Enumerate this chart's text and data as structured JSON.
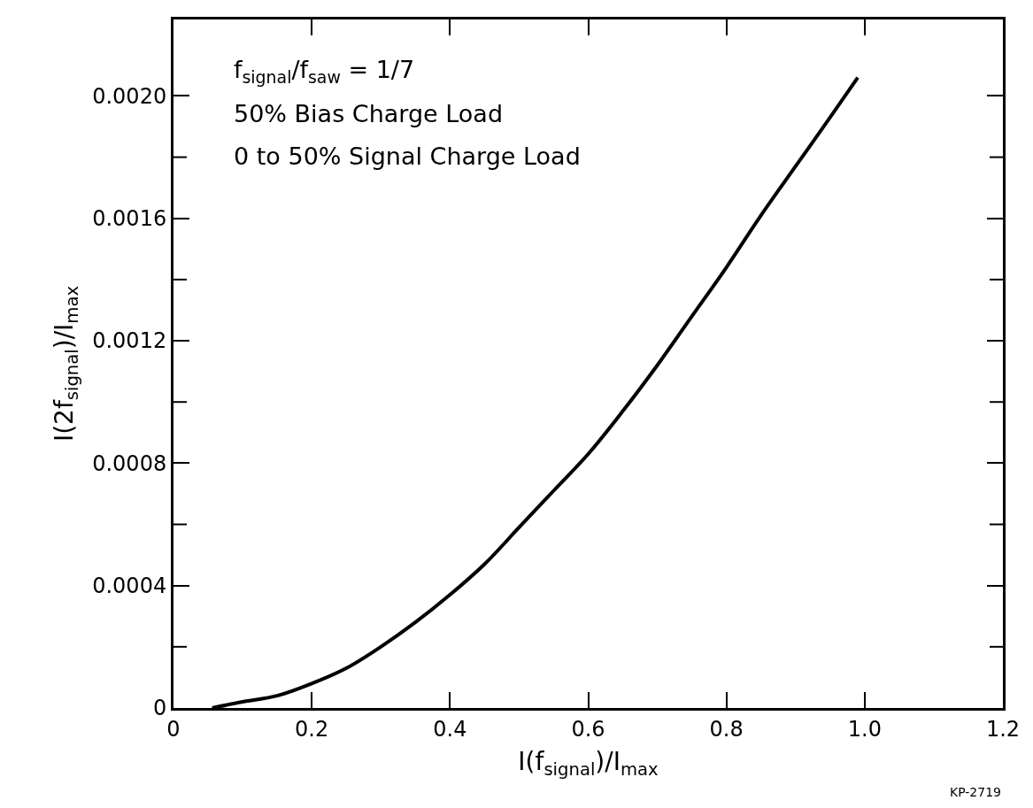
{
  "chart_data": {
    "type": "line",
    "xlabel": "I(f$_{signal}$)/I$_{max}$",
    "ylabel": "I(2f$_{signal}$)/I$_{max}$",
    "annotations": [
      "f$_{signal}$/f$_{saw}$ = 1/7",
      "50% Bias Charge Load",
      "0 to 50% Signal Charge Load",
      "KP-2719"
    ],
    "series": [
      {
        "color": "#000000",
        "x": [
          0.056,
          0.1,
          0.15,
          0.2,
          0.25,
          0.3,
          0.35,
          0.4,
          0.45,
          0.5,
          0.55,
          0.6,
          0.65,
          0.7,
          0.75,
          0.8,
          0.85,
          0.9,
          0.95,
          0.99
        ],
        "values": [
          0,
          2e-05,
          4e-05,
          8e-05,
          0.00013,
          0.0002,
          0.00028,
          0.00037,
          0.00047,
          0.00059,
          0.00071,
          0.00083,
          0.00097,
          0.00112,
          0.00128,
          0.00144,
          0.00161,
          0.00177,
          0.00193,
          0.00206
        ]
      }
    ],
    "xlim": [
      0,
      1.2
    ],
    "xticks": [
      0,
      0.2,
      0.4,
      0.6,
      0.8,
      {
        "value": 1.0,
        "label": "1.0"
      },
      1.2
    ],
    "ylim": [
      0,
      0.00225
    ],
    "yticks": [
      0,
      {
        "value": 0.0002,
        "label": null
      },
      0.0004,
      {
        "value": 0.0006,
        "label": null
      },
      0.0008,
      {
        "value": 0.001,
        "label": null
      },
      0.0012,
      {
        "value": 0.0014,
        "label": null
      },
      0.0016,
      {
        "value": 0.0018,
        "label": null
      },
      {
        "value": 0.002,
        "label": "0.0020"
      }
    ],
    "grid": false,
    "marker": "none",
    "line_style": "solid"
  }
}
